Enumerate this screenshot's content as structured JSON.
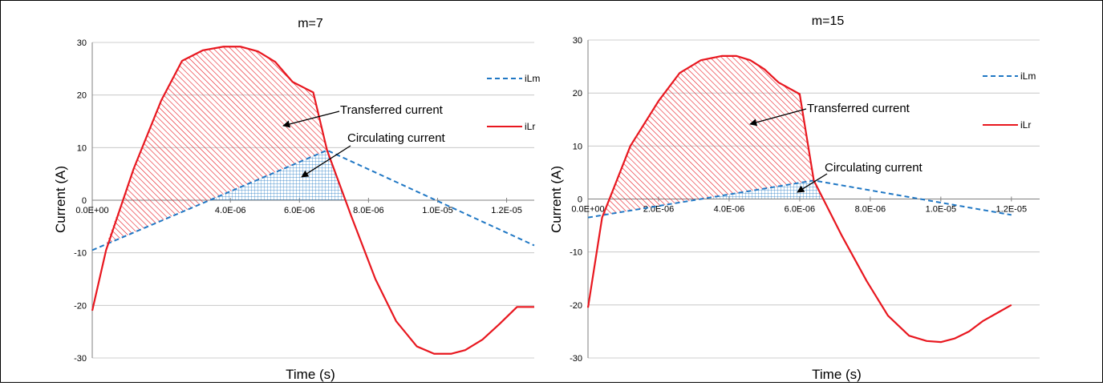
{
  "chart_data": [
    {
      "type": "line",
      "title": "m=7",
      "xlabel": "Time (s)",
      "ylabel": "Current (A)",
      "xlim": [
        0,
        1.28e-05
      ],
      "ylim": [
        -30,
        30
      ],
      "y_ticks": [
        30,
        20,
        10,
        0,
        -10,
        -20,
        -30
      ],
      "x_ticks": [
        0,
        4e-06,
        6e-06,
        8e-06,
        1e-05,
        1.2e-05
      ],
      "x_tick_labels": [
        "0.0E+00",
        "4.0E-06",
        "6.0E-06",
        "8.0E-06",
        "1.0E-05",
        "1.2E-05"
      ],
      "grid": "horizontal",
      "legend_position": "right",
      "series": [
        {
          "name": "iLm",
          "color": "#1F77C4",
          "style": "dashed",
          "x": [
            0,
            6.8e-06,
            1.28e-05
          ],
          "y": [
            -9.5,
            9.5,
            -8.6
          ]
        },
        {
          "name": "iLr",
          "color": "#E8171F",
          "style": "solid",
          "x": [
            0,
            4e-07,
            1.2e-06,
            2e-06,
            2.6e-06,
            3.2e-06,
            3.8e-06,
            4.3e-06,
            4.8e-06,
            5.3e-06,
            5.8e-06,
            6.4e-06,
            6.8e-06,
            7.5e-06,
            8.2e-06,
            8.8e-06,
            9.4e-06,
            9.9e-06,
            1.04e-05,
            1.08e-05,
            1.13e-05,
            1.18e-05,
            1.23e-05,
            1.28e-05
          ],
          "y": [
            -21,
            -9.5,
            6,
            19,
            26.5,
            28.5,
            29.2,
            29.2,
            28.3,
            26.3,
            22.5,
            20.5,
            9.5,
            -3,
            -15,
            -23,
            -27.8,
            -29.2,
            -29.2,
            -28.5,
            -26.5,
            -23.5,
            -20.3,
            -20.3
          ]
        }
      ],
      "annotations": [
        "Transferred current",
        "Circulating current"
      ]
    },
    {
      "type": "line",
      "title": "m=15",
      "xlabel": "Time (s)",
      "ylabel": "Current (A)",
      "xlim": [
        0,
        1.28e-05
      ],
      "ylim": [
        -30,
        30
      ],
      "y_ticks": [
        30,
        20,
        10,
        0,
        -10,
        -20,
        -30
      ],
      "x_ticks": [
        0,
        2e-06,
        4e-06,
        6e-06,
        8e-06,
        1e-05,
        1.2e-05
      ],
      "x_tick_labels": [
        "0.0E+00",
        "2.0E-06",
        "4.0E-06",
        "6.0E-06",
        "8.0E-06",
        "1.0E-05",
        "1.2E-05"
      ],
      "grid": "horizontal",
      "legend_position": "right",
      "series": [
        {
          "name": "iLm",
          "color": "#1F77C4",
          "style": "dashed",
          "x": [
            0,
            6.4e-06,
            1.2e-05
          ],
          "y": [
            -3.5,
            3.5,
            -3
          ]
        },
        {
          "name": "iLr",
          "color": "#E8171F",
          "style": "solid",
          "x": [
            0,
            4e-07,
            1.2e-06,
            2e-06,
            2.6e-06,
            3.2e-06,
            3.8e-06,
            4.2e-06,
            4.6e-06,
            5e-06,
            5.4e-06,
            6e-06,
            6.4e-06,
            7.2e-06,
            7.9e-06,
            8.5e-06,
            9.1e-06,
            9.6e-06,
            1e-05,
            1.04e-05,
            1.08e-05,
            1.12e-05,
            1.16e-05,
            1.2e-05
          ],
          "y": [
            -20.5,
            -3.5,
            10,
            18.5,
            23.8,
            26.2,
            27,
            27,
            26.2,
            24.5,
            22,
            19.8,
            3.5,
            -7,
            -15.5,
            -22,
            -25.8,
            -26.8,
            -27,
            -26.3,
            -25,
            -23,
            -21.5,
            -20
          ]
        }
      ],
      "annotations": [
        "Transferred current",
        "Circulating current"
      ]
    }
  ]
}
